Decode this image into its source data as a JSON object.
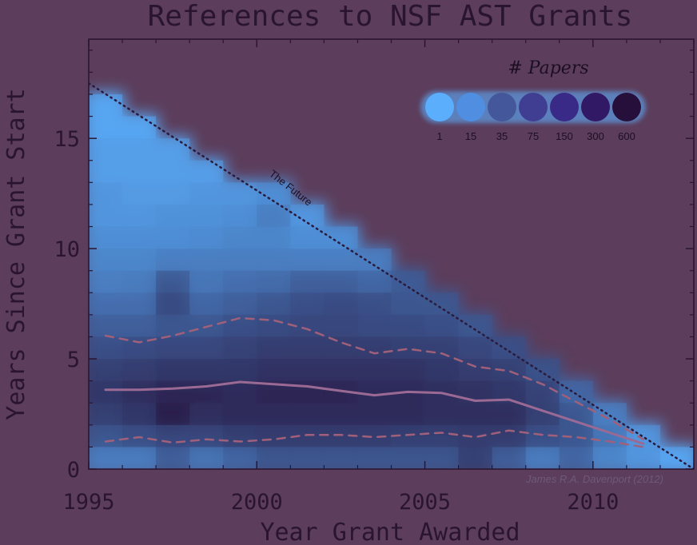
{
  "chart_data": {
    "type": "heatmap",
    "title": "References to NSF AST Grants",
    "xlabel": "Year Grant Awarded",
    "ylabel": "Years Since Grant Start",
    "xlim": [
      1995,
      2013
    ],
    "ylim": [
      0,
      19.5
    ],
    "xticks": [
      "1995",
      "2000",
      "2005",
      "2010"
    ],
    "yticks": [
      "0",
      "5",
      "10",
      "15"
    ],
    "grid": false,
    "colors": {
      "background": "#5c3d5b",
      "low": "#5aaefc",
      "high": "#250f38",
      "median_line": "#9a6a95",
      "quartile_line": "#a0607a",
      "future_line": "#2a1a3c"
    },
    "legend": {
      "title": "# Papers",
      "placement": "top-right",
      "labels": [
        "1",
        "15",
        "35",
        "75",
        "150",
        "300",
        "600"
      ],
      "colors": [
        "#5aaefc",
        "#4f8ee0",
        "#43579a",
        "#3f3e93",
        "#3a2a88",
        "#321966",
        "#260f3a"
      ]
    },
    "annotations": [
      {
        "text": "The Future",
        "x": 2000.6,
        "y": 12.5
      },
      {
        "text": "James R.A. Davenport (2012)"
      }
    ],
    "cells": [
      [
        1995,
        0,
        0.3
      ],
      [
        1995,
        1,
        0.55
      ],
      [
        1995,
        2,
        0.7
      ],
      [
        1995,
        3,
        0.75
      ],
      [
        1995,
        4,
        0.7
      ],
      [
        1995,
        5,
        0.6
      ],
      [
        1995,
        6,
        0.5
      ],
      [
        1995,
        7,
        0.4
      ],
      [
        1995,
        8,
        0.3
      ],
      [
        1995,
        9,
        0.25
      ],
      [
        1995,
        10,
        0.2
      ],
      [
        1995,
        11,
        0.15
      ],
      [
        1995,
        12,
        0.15
      ],
      [
        1995,
        13,
        0.1
      ],
      [
        1995,
        14,
        0.1
      ],
      [
        1995,
        15,
        0.05
      ],
      [
        1995,
        16,
        0.05
      ],
      [
        1996,
        0,
        0.3
      ],
      [
        1996,
        1,
        0.6
      ],
      [
        1996,
        2,
        0.75
      ],
      [
        1996,
        3,
        0.8
      ],
      [
        1996,
        4,
        0.72
      ],
      [
        1996,
        5,
        0.62
      ],
      [
        1996,
        6,
        0.5
      ],
      [
        1996,
        7,
        0.4
      ],
      [
        1996,
        8,
        0.32
      ],
      [
        1996,
        9,
        0.25
      ],
      [
        1996,
        10,
        0.2
      ],
      [
        1996,
        11,
        0.15
      ],
      [
        1996,
        12,
        0.12
      ],
      [
        1996,
        13,
        0.1
      ],
      [
        1996,
        14,
        0.1
      ],
      [
        1996,
        15,
        0.05
      ],
      [
        1997,
        0,
        0.5
      ],
      [
        1997,
        1,
        0.65
      ],
      [
        1997,
        2,
        0.9
      ],
      [
        1997,
        3,
        0.85
      ],
      [
        1997,
        4,
        0.75
      ],
      [
        1997,
        5,
        0.65
      ],
      [
        1997,
        6,
        0.55
      ],
      [
        1997,
        7,
        0.62
      ],
      [
        1997,
        8,
        0.55
      ],
      [
        1997,
        9,
        0.3
      ],
      [
        1997,
        10,
        0.2
      ],
      [
        1997,
        11,
        0.18
      ],
      [
        1997,
        12,
        0.12
      ],
      [
        1997,
        13,
        0.1
      ],
      [
        1997,
        14,
        0.1
      ],
      [
        1998,
        0,
        0.35
      ],
      [
        1998,
        1,
        0.65
      ],
      [
        1998,
        2,
        0.8
      ],
      [
        1998,
        3,
        0.85
      ],
      [
        1998,
        4,
        0.75
      ],
      [
        1998,
        5,
        0.65
      ],
      [
        1998,
        6,
        0.55
      ],
      [
        1998,
        7,
        0.45
      ],
      [
        1998,
        8,
        0.35
      ],
      [
        1998,
        9,
        0.3
      ],
      [
        1998,
        10,
        0.22
      ],
      [
        1998,
        11,
        0.18
      ],
      [
        1998,
        12,
        0.15
      ],
      [
        1998,
        13,
        0.1
      ],
      [
        1999,
        0,
        0.45
      ],
      [
        1999,
        1,
        0.7
      ],
      [
        1999,
        2,
        0.82
      ],
      [
        1999,
        3,
        0.82
      ],
      [
        1999,
        4,
        0.75
      ],
      [
        1999,
        5,
        0.68
      ],
      [
        1999,
        6,
        0.6
      ],
      [
        1999,
        7,
        0.5
      ],
      [
        1999,
        8,
        0.4
      ],
      [
        1999,
        9,
        0.3
      ],
      [
        1999,
        10,
        0.25
      ],
      [
        1999,
        11,
        0.2
      ],
      [
        1999,
        12,
        0.15
      ],
      [
        2000,
        0,
        0.55
      ],
      [
        2000,
        1,
        0.72
      ],
      [
        2000,
        2,
        0.82
      ],
      [
        2000,
        3,
        0.85
      ],
      [
        2000,
        4,
        0.78
      ],
      [
        2000,
        5,
        0.72
      ],
      [
        2000,
        6,
        0.62
      ],
      [
        2000,
        7,
        0.55
      ],
      [
        2000,
        8,
        0.42
      ],
      [
        2000,
        9,
        0.3
      ],
      [
        2000,
        10,
        0.25
      ],
      [
        2000,
        11,
        0.3
      ],
      [
        2000,
        12,
        0.2
      ],
      [
        2001,
        0,
        0.55
      ],
      [
        2001,
        1,
        0.72
      ],
      [
        2001,
        2,
        0.82
      ],
      [
        2001,
        3,
        0.85
      ],
      [
        2001,
        4,
        0.78
      ],
      [
        2001,
        5,
        0.72
      ],
      [
        2001,
        6,
        0.65
      ],
      [
        2001,
        7,
        0.6
      ],
      [
        2001,
        8,
        0.5
      ],
      [
        2001,
        9,
        0.3
      ],
      [
        2001,
        10,
        0.2
      ],
      [
        2001,
        11,
        0.15
      ],
      [
        2002,
        0,
        0.55
      ],
      [
        2002,
        1,
        0.72
      ],
      [
        2002,
        2,
        0.82
      ],
      [
        2002,
        3,
        0.85
      ],
      [
        2002,
        4,
        0.78
      ],
      [
        2002,
        5,
        0.72
      ],
      [
        2002,
        6,
        0.65
      ],
      [
        2002,
        7,
        0.62
      ],
      [
        2002,
        8,
        0.5
      ],
      [
        2002,
        9,
        0.3
      ],
      [
        2002,
        10,
        0.2
      ],
      [
        2003,
        0,
        0.55
      ],
      [
        2003,
        1,
        0.72
      ],
      [
        2003,
        2,
        0.82
      ],
      [
        2003,
        3,
        0.82
      ],
      [
        2003,
        4,
        0.78
      ],
      [
        2003,
        5,
        0.72
      ],
      [
        2003,
        6,
        0.62
      ],
      [
        2003,
        7,
        0.6
      ],
      [
        2003,
        8,
        0.45
      ],
      [
        2003,
        9,
        0.3
      ],
      [
        2004,
        0,
        0.55
      ],
      [
        2004,
        1,
        0.7
      ],
      [
        2004,
        2,
        0.82
      ],
      [
        2004,
        3,
        0.82
      ],
      [
        2004,
        4,
        0.78
      ],
      [
        2004,
        5,
        0.7
      ],
      [
        2004,
        6,
        0.62
      ],
      [
        2004,
        7,
        0.55
      ],
      [
        2004,
        8,
        0.52
      ],
      [
        2005,
        0,
        0.55
      ],
      [
        2005,
        1,
        0.7
      ],
      [
        2005,
        2,
        0.8
      ],
      [
        2005,
        3,
        0.8
      ],
      [
        2005,
        4,
        0.75
      ],
      [
        2005,
        5,
        0.7
      ],
      [
        2005,
        6,
        0.6
      ],
      [
        2005,
        7,
        0.55
      ],
      [
        2006,
        0,
        0.7
      ],
      [
        2006,
        1,
        0.72
      ],
      [
        2006,
        2,
        0.8
      ],
      [
        2006,
        3,
        0.78
      ],
      [
        2006,
        4,
        0.72
      ],
      [
        2006,
        5,
        0.65
      ],
      [
        2006,
        6,
        0.55
      ],
      [
        2007,
        0,
        0.5
      ],
      [
        2007,
        1,
        0.72
      ],
      [
        2007,
        2,
        0.8
      ],
      [
        2007,
        3,
        0.75
      ],
      [
        2007,
        4,
        0.7
      ],
      [
        2007,
        5,
        0.6
      ],
      [
        2008,
        0,
        0.3
      ],
      [
        2008,
        1,
        0.6
      ],
      [
        2008,
        2,
        0.7
      ],
      [
        2008,
        3,
        0.68
      ],
      [
        2008,
        4,
        0.58
      ],
      [
        2009,
        0,
        0.45
      ],
      [
        2009,
        1,
        0.55
      ],
      [
        2009,
        2,
        0.55
      ],
      [
        2009,
        3,
        0.45
      ],
      [
        2010,
        0,
        0.25
      ],
      [
        2010,
        1,
        0.35
      ],
      [
        2010,
        2,
        0.3
      ],
      [
        2011,
        0,
        0.15
      ],
      [
        2011,
        1,
        0.15
      ],
      [
        2012,
        0,
        0.05
      ]
    ],
    "series": [
      {
        "values": [
          [
            1995,
            3.6
          ],
          [
            1996,
            3.6
          ],
          [
            1997,
            3.65
          ],
          [
            1998,
            3.75
          ],
          [
            1999,
            3.95
          ],
          [
            2000,
            3.85
          ],
          [
            2001,
            3.75
          ],
          [
            2002,
            3.55
          ],
          [
            2003,
            3.35
          ],
          [
            2004,
            3.5
          ],
          [
            2005,
            3.45
          ],
          [
            2006,
            3.1
          ],
          [
            2007,
            3.15
          ],
          [
            2008,
            2.65
          ],
          [
            2009,
            2.15
          ],
          [
            2010,
            1.65
          ],
          [
            2011,
            1.15
          ]
        ]
      },
      {
        "values": [
          [
            1995,
            6.05
          ],
          [
            1996,
            5.75
          ],
          [
            1997,
            6.05
          ],
          [
            1998,
            6.45
          ],
          [
            1999,
            6.85
          ],
          [
            2000,
            6.75
          ],
          [
            2001,
            6.35
          ],
          [
            2002,
            5.75
          ],
          [
            2003,
            5.25
          ],
          [
            2004,
            5.45
          ],
          [
            2005,
            5.25
          ],
          [
            2006,
            4.65
          ],
          [
            2007,
            4.45
          ],
          [
            2008,
            3.85
          ],
          [
            2009,
            3.05
          ],
          [
            2010,
            2.25
          ],
          [
            2011,
            1.35
          ]
        ]
      },
      {
        "values": [
          [
            1995,
            1.25
          ],
          [
            1996,
            1.45
          ],
          [
            1997,
            1.2
          ],
          [
            1998,
            1.35
          ],
          [
            1999,
            1.25
          ],
          [
            2000,
            1.35
          ],
          [
            2001,
            1.55
          ],
          [
            2002,
            1.55
          ],
          [
            2003,
            1.45
          ],
          [
            2004,
            1.55
          ],
          [
            2005,
            1.65
          ],
          [
            2006,
            1.45
          ],
          [
            2007,
            1.75
          ],
          [
            2008,
            1.55
          ],
          [
            2009,
            1.45
          ],
          [
            2010,
            1.25
          ],
          [
            2011,
            1.0
          ]
        ]
      },
      {
        "values": [
          [
            1995,
            17.5
          ],
          [
            2013,
            0
          ]
        ]
      }
    ]
  }
}
